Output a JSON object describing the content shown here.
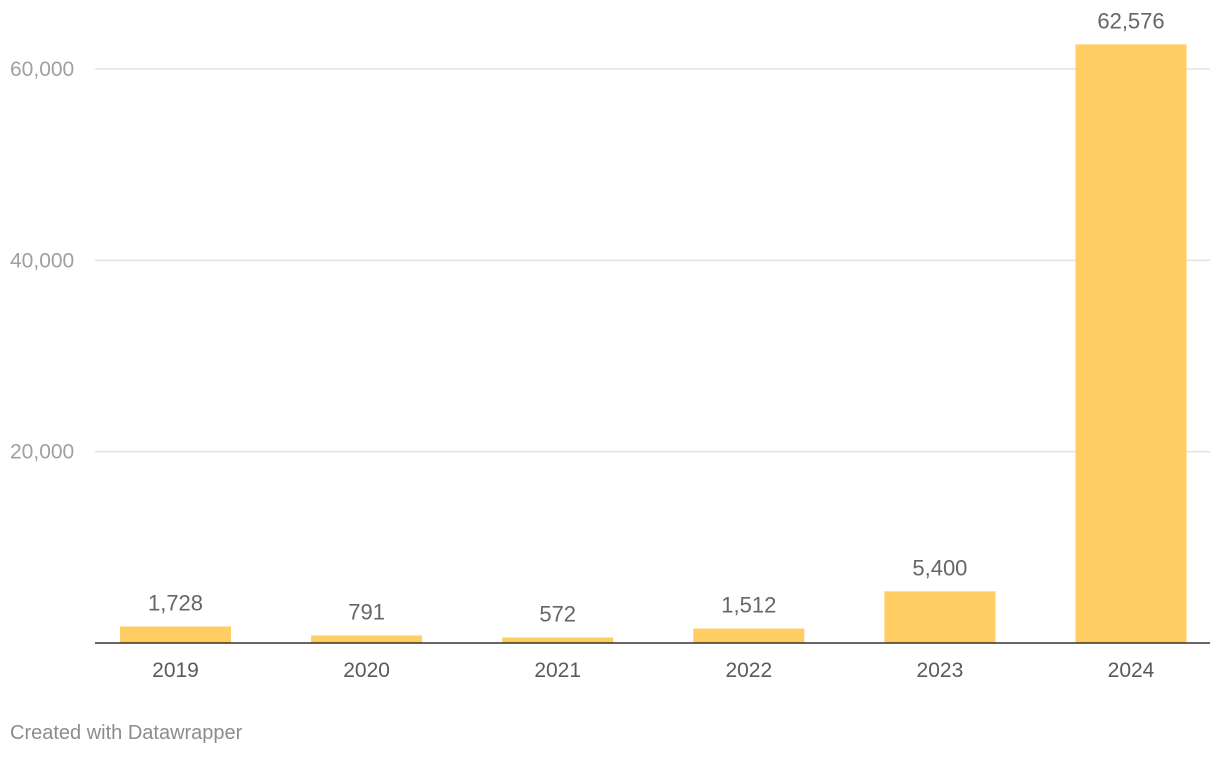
{
  "chart_data": {
    "type": "bar",
    "title": "",
    "xlabel": "",
    "ylabel": "",
    "categories": [
      "2019",
      "2020",
      "2021",
      "2022",
      "2023",
      "2024"
    ],
    "values": [
      1728,
      791,
      572,
      1512,
      5400,
      62576
    ],
    "data_labels": [
      "1,728",
      "791",
      "572",
      "1,512",
      "5,400",
      "62,576"
    ],
    "ylim": [
      0,
      66000
    ],
    "yticks": [
      20000,
      40000,
      60000
    ],
    "ytick_labels": [
      "20,000",
      "40,000",
      "60,000"
    ],
    "grid": true,
    "legend": "none",
    "bar_color": "#ffcd62"
  },
  "footer": {
    "credit": "Created with Datawrapper"
  }
}
